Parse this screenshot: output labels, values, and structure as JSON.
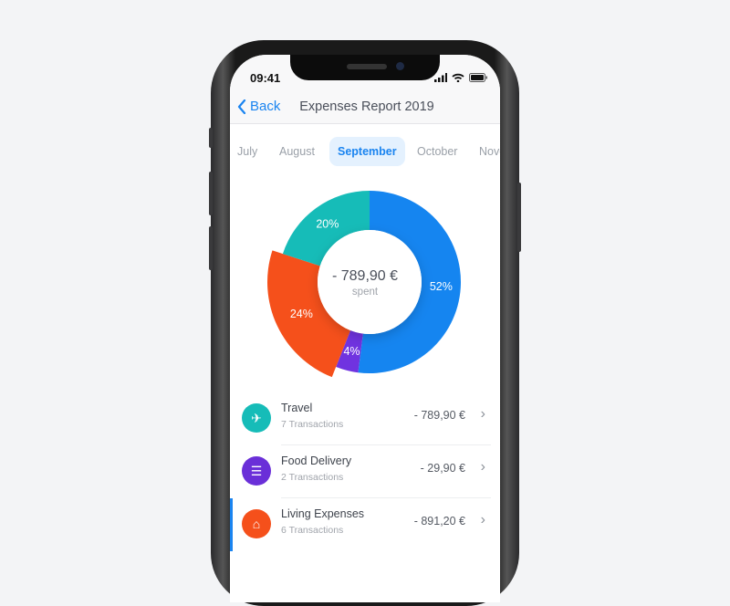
{
  "status_bar": {
    "time": "09:41"
  },
  "nav": {
    "back_label": "Back",
    "title": "Expenses Report 2019"
  },
  "months": [
    {
      "label": "July",
      "active": false
    },
    {
      "label": "August",
      "active": false
    },
    {
      "label": "September",
      "active": true
    },
    {
      "label": "October",
      "active": false
    },
    {
      "label": "Nove",
      "active": false
    }
  ],
  "summary": {
    "amount": "- 789,90 €",
    "label": "spent"
  },
  "chart_data": {
    "type": "pie",
    "donut": true,
    "slices": [
      {
        "value": 52,
        "label": "52%",
        "color": "#1585f0"
      },
      {
        "value": 4,
        "label": "4%",
        "color": "#7033e0"
      },
      {
        "value": 24,
        "label": "24%",
        "color": "#f5501b",
        "highlighted": true
      },
      {
        "value": 20,
        "label": "20%",
        "color": "#16bcb8"
      }
    ]
  },
  "categories": [
    {
      "name": "Travel",
      "transactions": "7 Transactions",
      "amount": "- 789,90 €",
      "icon": "airplane-icon",
      "color": "#16bcb8",
      "selected": false
    },
    {
      "name": "Food Delivery",
      "transactions": "2 Transactions",
      "amount": "- 29,90 €",
      "icon": "burger-icon",
      "color": "#6a2fd8",
      "selected": false
    },
    {
      "name": "Living Expenses",
      "transactions": "6 Transactions",
      "amount": "- 891,20 €",
      "icon": "house-icon",
      "color": "#f5501b",
      "selected": true
    }
  ]
}
